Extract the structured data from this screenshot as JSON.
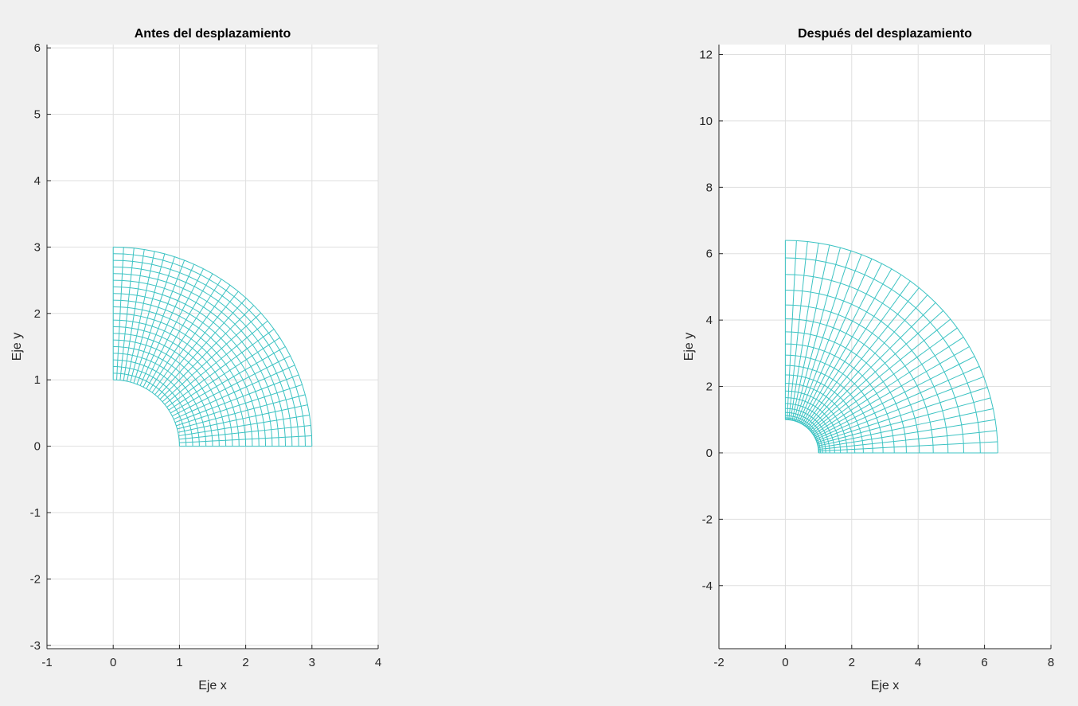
{
  "chart_data": [
    {
      "id": "antes",
      "type": "line",
      "title": "Antes del desplazamiento",
      "xlabel": "Eje x",
      "ylabel": "Eje y",
      "xlim": [
        -1,
        4
      ],
      "ylim": [
        -3.05,
        6.05
      ],
      "xticks": [
        -1,
        0,
        1,
        2,
        3,
        4
      ],
      "xtick_labels": [
        "-1",
        "0",
        "1",
        "2",
        "3",
        "4"
      ],
      "yticks": [
        -3,
        -2,
        -1,
        0,
        1,
        2,
        3,
        4,
        5,
        6
      ],
      "ytick_labels": [
        "-3",
        "-2",
        "-1",
        "0",
        "1",
        "2",
        "3",
        "4",
        "5",
        "6"
      ],
      "grid": true,
      "mesh": {
        "description": "quarter annulus mesh",
        "inner_radius": 1,
        "outer_radius": 3,
        "angle_start_deg": 0,
        "angle_end_deg": 90,
        "radial_divisions": 20,
        "angular_divisions": 30,
        "radial_mapping": "linear"
      }
    },
    {
      "id": "despues",
      "type": "line",
      "title": "Después del desplazamiento",
      "xlabel": "Eje x",
      "ylabel": "Eje y",
      "xlim": [
        -2,
        8
      ],
      "ylim": [
        -5.9,
        12.3
      ],
      "xticks": [
        -2,
        0,
        2,
        4,
        6,
        8
      ],
      "xtick_labels": [
        "-2",
        "0",
        "2",
        "4",
        "6",
        "8"
      ],
      "yticks": [
        -4,
        -2,
        0,
        2,
        4,
        6,
        8,
        10,
        12
      ],
      "ytick_labels": [
        "-4",
        "-2",
        "0",
        "2",
        "4",
        "6",
        "8",
        "10",
        "12"
      ],
      "grid": true,
      "mesh": {
        "description": "deformed quarter annulus mesh",
        "inner_radius": 1,
        "outer_radius": 6.4,
        "angle_start_deg": 0,
        "angle_end_deg": 90,
        "radial_divisions": 20,
        "angular_divisions": 30,
        "radial_mapping": "quadratic"
      }
    }
  ],
  "colors": {
    "mesh": "#3cc3c3",
    "grid": "#dfdfdf",
    "axes": "#262626",
    "figure_background": "#f0f0f0",
    "axes_background": "#ffffff"
  }
}
